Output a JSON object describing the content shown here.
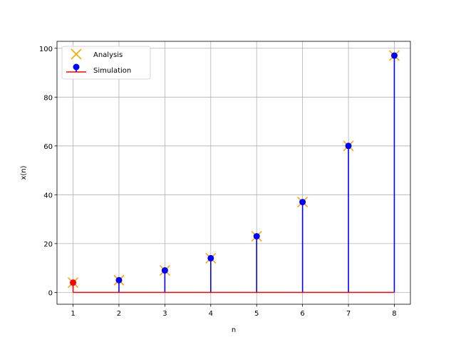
{
  "chart_data": {
    "type": "stem",
    "xlabel": "n",
    "ylabel": "x(n)",
    "xlim": [
      0.65,
      8.35
    ],
    "ylim": [
      -4.85,
      102.85
    ],
    "xticks": [
      1,
      2,
      3,
      4,
      5,
      6,
      7,
      8
    ],
    "yticks": [
      0,
      20,
      40,
      60,
      80,
      100
    ],
    "grid": true,
    "legend_position": "upper-left",
    "series": [
      {
        "name": "Analysis",
        "marker": "x",
        "color": "#ffa500",
        "x": [
          1,
          2,
          3,
          4,
          5,
          6,
          7,
          8
        ],
        "y": [
          4,
          5,
          9,
          14,
          23,
          37,
          60,
          97
        ]
      },
      {
        "name": "Simulation",
        "marker": "o",
        "stem_color": "#0000ff",
        "marker_color": "#0000ff",
        "first_marker_color": "#ff0000",
        "baseline_color": "#ff0000",
        "x": [
          1,
          2,
          3,
          4,
          5,
          6,
          7,
          8
        ],
        "y": [
          4,
          5,
          9,
          14,
          23,
          37,
          60,
          97
        ]
      }
    ]
  }
}
